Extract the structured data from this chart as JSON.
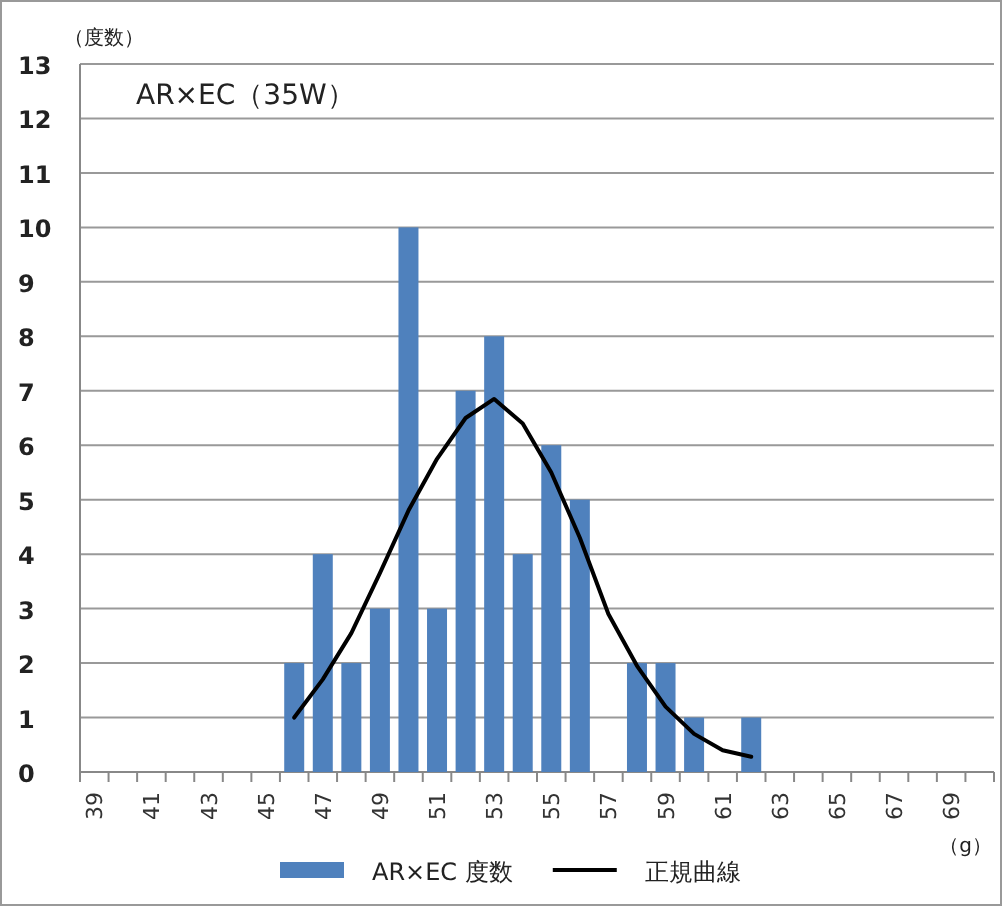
{
  "chart_data": {
    "type": "bar",
    "title": "AR×EC（35W）",
    "ylabel": "（度数）",
    "xlabel": "（g）",
    "categories": [
      "39",
      null,
      "41",
      null,
      "43",
      null,
      "45",
      null,
      "47",
      null,
      "49",
      null,
      "51",
      null,
      "53",
      null,
      "55",
      null,
      "57",
      null,
      "59",
      null,
      "61",
      null,
      "63",
      null,
      "65",
      null,
      "67",
      null,
      "69",
      null
    ],
    "series": [
      {
        "name": "AR×EC 度数",
        "color": "#4f81bd",
        "values": [
          0,
          0,
          0,
          0,
          0,
          0,
          0,
          2,
          4,
          2,
          3,
          10,
          3,
          7,
          8,
          4,
          6,
          5,
          0,
          2,
          2,
          1,
          0,
          1,
          0,
          0,
          0,
          0,
          0,
          0,
          0,
          0
        ]
      },
      {
        "name": "正規曲線",
        "type": "line",
        "color": "#000000",
        "values": [
          null,
          null,
          null,
          null,
          null,
          null,
          null,
          1.0,
          1.7,
          2.55,
          3.65,
          4.8,
          5.75,
          6.5,
          6.85,
          6.4,
          5.5,
          4.3,
          2.9,
          1.95,
          1.2,
          0.7,
          0.4,
          0.28,
          null,
          null,
          null,
          null,
          null,
          null,
          null,
          null
        ]
      }
    ],
    "ylim": [
      0,
      13
    ],
    "yticks": [
      0,
      1,
      2,
      3,
      4,
      5,
      6,
      7,
      8,
      9,
      10,
      11,
      12,
      13
    ],
    "grid": "y",
    "legend": "bottom"
  }
}
